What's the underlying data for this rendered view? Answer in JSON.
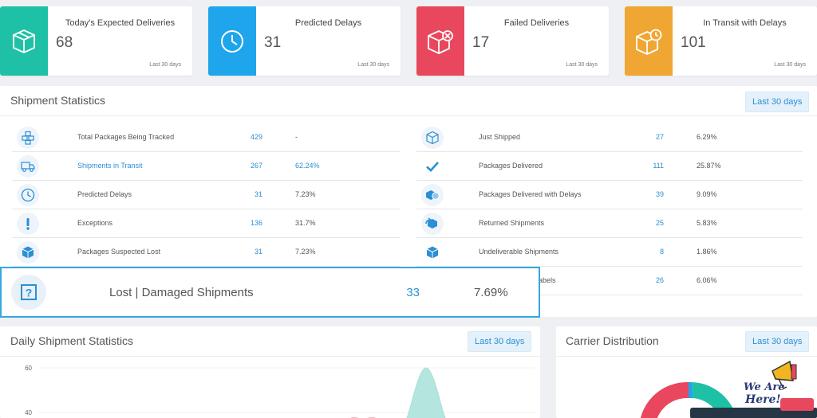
{
  "kpis": [
    {
      "title": "Today's Expected Deliveries",
      "value": "68",
      "period": "Last 30 days",
      "color": "#1fc1a6",
      "icon": "package-icon"
    },
    {
      "title": "Predicted Delays",
      "value": "31",
      "period": "Last 30 days",
      "color": "#1fa5ec",
      "icon": "clock-icon"
    },
    {
      "title": "Failed Deliveries",
      "value": "17",
      "period": "Last 30 days",
      "color": "#e8475d",
      "icon": "package-failed-icon"
    },
    {
      "title": "In Transit with Delays",
      "value": "101",
      "period": "Last 30 days",
      "color": "#f0a632",
      "icon": "package-clock-icon"
    }
  ],
  "shipment_stats": {
    "title": "Shipment Statistics",
    "period_button": "Last 30 days",
    "left": [
      {
        "label": "Total Packages Being Tracked",
        "count": "429",
        "percent": "-",
        "icon": "boxes-icon"
      },
      {
        "label": "Shipments in Transit",
        "count": "267",
        "percent": "62.24%",
        "icon": "truck-icon",
        "link": true
      },
      {
        "label": "Predicted Delays",
        "count": "31",
        "percent": "7.23%",
        "icon": "clock-icon"
      },
      {
        "label": "Exceptions",
        "count": "136",
        "percent": "31.7%",
        "icon": "exclamation-icon"
      },
      {
        "label": "Packages Suspected Lost",
        "count": "31",
        "percent": "7.23%",
        "icon": "package-icon"
      }
    ],
    "right": [
      {
        "label": "Just Shipped",
        "count": "27",
        "percent": "6.29%",
        "icon": "box-icon"
      },
      {
        "label": "Packages Delivered",
        "count": "111",
        "percent": "25.87%",
        "icon": "check-icon"
      },
      {
        "label": "Packages Delivered with Delays",
        "count": "39",
        "percent": "9.09%",
        "icon": "delayed-delivery-icon"
      },
      {
        "label": "Returned Shipments",
        "count": "25",
        "percent": "5.83%",
        "icon": "return-icon"
      },
      {
        "label": "Undeliverable Shipments",
        "count": "8",
        "percent": "1.86%",
        "icon": "box-solid-icon"
      },
      {
        "label": "abels",
        "count": "26",
        "percent": "6.06%",
        "icon": ""
      }
    ],
    "highlight": {
      "label": "Lost | Damaged Shipments",
      "count": "33",
      "percent": "7.69%",
      "icon": "question-box-icon"
    }
  },
  "daily_stats": {
    "title": "Daily Shipment Statistics",
    "period_button": "Last 30 days"
  },
  "carrier": {
    "title": "Carrier Distribution",
    "period_button": "Last 30 days"
  },
  "chart_data": {
    "type": "area",
    "title": "Daily Shipment Statistics",
    "yticks": [
      "60",
      "40"
    ],
    "ylim": [
      20,
      60
    ],
    "series": [
      {
        "color": "#f3b6bf",
        "peak": 37
      },
      {
        "color": "#a8e0d9",
        "peak": 60
      }
    ]
  },
  "badge": {
    "text_line1": "We Are",
    "text_line2": "Here!"
  },
  "colors": {
    "accent": "#2a8fd4",
    "highlight_border": "#35a7e2"
  }
}
